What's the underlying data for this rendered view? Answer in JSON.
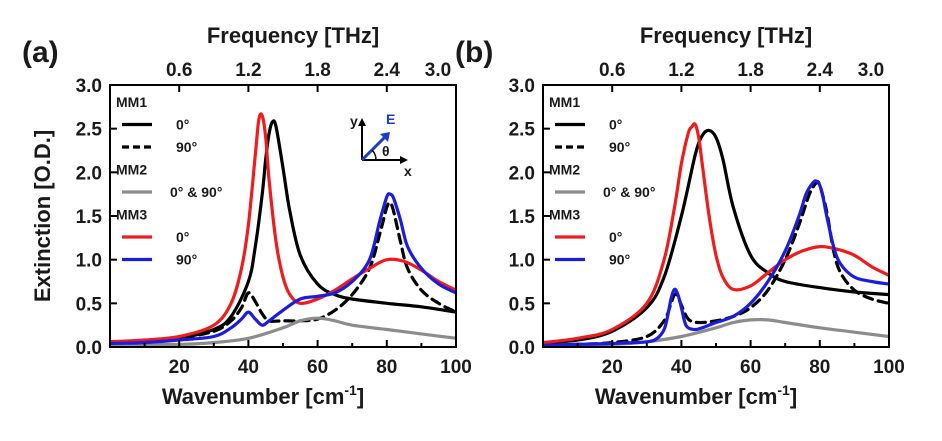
{
  "chart_data": [
    {
      "type": "line",
      "panel_label": "(a)",
      "xlabel_main": "Wavenumber [cm",
      "xlabel_sup": "-1",
      "xlabel_end": "]",
      "ylabel": "Extinction [O.D.]",
      "top_label": "Frequency [THz]",
      "xlim": [
        0,
        100
      ],
      "ylim": [
        0,
        3.0
      ],
      "x_ticks": [
        20,
        40,
        60,
        80,
        100
      ],
      "y_ticks": [
        "0.0",
        "0.5",
        "1.0",
        "1.5",
        "2.0",
        "2.5",
        "3.0"
      ],
      "top_ticks": [
        "0.6",
        "1.2",
        "1.8",
        "2.4",
        "3.0"
      ],
      "legend": {
        "groups": [
          "MM1",
          "MM2",
          "MM3"
        ],
        "entries": [
          {
            "group": 0,
            "label": "0°",
            "color": "#000000",
            "dash": false
          },
          {
            "group": 0,
            "label": "90°",
            "color": "#000000",
            "dash": true
          },
          {
            "group": 1,
            "label": "0° & 90°",
            "color": "#8c8c8c",
            "dash": false
          },
          {
            "group": 2,
            "label": "0°",
            "color": "#ee1c1c",
            "dash": false
          },
          {
            "group": 2,
            "label": "90°",
            "color": "#1c1cdc",
            "dash": false
          }
        ]
      },
      "inset": {
        "y": "y",
        "x": "x",
        "e": "E",
        "theta": "θ"
      },
      "series": [
        {
          "name": "MM1 0°",
          "color": "#000000",
          "dash": false,
          "x": [
            0,
            10,
            20,
            30,
            35,
            40,
            42,
            44,
            45,
            46,
            47,
            48,
            50,
            52,
            55,
            60,
            65,
            70,
            80,
            90,
            100
          ],
          "y": [
            0.06,
            0.06,
            0.1,
            0.2,
            0.35,
            0.75,
            1.15,
            1.75,
            2.15,
            2.45,
            2.58,
            2.52,
            2.05,
            1.55,
            1.05,
            0.72,
            0.6,
            0.55,
            0.5,
            0.46,
            0.4
          ]
        },
        {
          "name": "MM1 90°",
          "color": "#000000",
          "dash": true,
          "x": [
            0,
            10,
            20,
            30,
            35,
            38,
            40,
            42,
            44,
            46,
            50,
            55,
            60,
            65,
            70,
            75,
            78,
            80,
            81,
            82,
            84,
            86,
            90,
            95,
            100
          ],
          "y": [
            0.05,
            0.06,
            0.1,
            0.18,
            0.3,
            0.45,
            0.62,
            0.52,
            0.38,
            0.3,
            0.3,
            0.3,
            0.32,
            0.42,
            0.6,
            0.9,
            1.3,
            1.6,
            1.65,
            1.55,
            1.2,
            0.9,
            0.65,
            0.5,
            0.4
          ]
        },
        {
          "name": "MM2 0° & 90°",
          "color": "#8c8c8c",
          "dash": false,
          "x": [
            0,
            20,
            30,
            40,
            50,
            55,
            60,
            65,
            70,
            80,
            90,
            100
          ],
          "y": [
            0.02,
            0.03,
            0.05,
            0.1,
            0.22,
            0.3,
            0.33,
            0.3,
            0.25,
            0.2,
            0.15,
            0.1
          ]
        },
        {
          "name": "MM3 0°",
          "color": "#ee1c1c",
          "dash": false,
          "x": [
            0,
            10,
            20,
            30,
            35,
            38,
            40,
            42,
            43,
            44,
            45,
            46,
            48,
            50,
            52,
            55,
            60,
            65,
            70,
            75,
            80,
            85,
            90,
            95,
            100
          ],
          "y": [
            0.06,
            0.08,
            0.12,
            0.25,
            0.5,
            0.9,
            1.4,
            2.2,
            2.6,
            2.65,
            2.4,
            1.9,
            1.2,
            0.8,
            0.6,
            0.5,
            0.55,
            0.65,
            0.78,
            0.9,
            1.0,
            0.98,
            0.88,
            0.75,
            0.65
          ]
        },
        {
          "name": "MM3 90°",
          "color": "#1c1cdc",
          "dash": false,
          "x": [
            0,
            10,
            20,
            30,
            35,
            38,
            40,
            42,
            44,
            46,
            50,
            55,
            60,
            65,
            70,
            75,
            78,
            80,
            81,
            82,
            84,
            86,
            90,
            95,
            100
          ],
          "y": [
            0.04,
            0.05,
            0.08,
            0.12,
            0.22,
            0.32,
            0.4,
            0.32,
            0.25,
            0.3,
            0.42,
            0.55,
            0.58,
            0.62,
            0.75,
            1.0,
            1.45,
            1.72,
            1.75,
            1.7,
            1.45,
            1.15,
            0.9,
            0.72,
            0.62
          ]
        }
      ]
    },
    {
      "type": "line",
      "panel_label": "(b)",
      "xlabel_main": "Wavenumber [cm",
      "xlabel_sup": "-1",
      "xlabel_end": "]",
      "ylabel": "",
      "top_label": "Frequency [THz]",
      "xlim": [
        0,
        100
      ],
      "ylim": [
        0,
        3.0
      ],
      "x_ticks": [
        20,
        40,
        60,
        80,
        100
      ],
      "y_ticks": [
        "0.0",
        "0.5",
        "1.0",
        "1.5",
        "2.0",
        "2.5",
        "3.0"
      ],
      "top_ticks": [
        "0.6",
        "1.2",
        "1.8",
        "2.4",
        "3.0"
      ],
      "legend": {
        "groups": [
          "MM1",
          "MM2",
          "MM3"
        ],
        "entries": [
          {
            "group": 0,
            "label": "0°",
            "color": "#000000",
            "dash": false
          },
          {
            "group": 0,
            "label": "90°",
            "color": "#000000",
            "dash": true
          },
          {
            "group": 1,
            "label": "0° & 90°",
            "color": "#8c8c8c",
            "dash": false
          },
          {
            "group": 2,
            "label": "0°",
            "color": "#ee1c1c",
            "dash": false
          },
          {
            "group": 2,
            "label": "90°",
            "color": "#1c1cdc",
            "dash": false
          }
        ]
      },
      "series": [
        {
          "name": "MM1 0°",
          "color": "#000000",
          "dash": false,
          "x": [
            0,
            10,
            20,
            30,
            35,
            40,
            44,
            46,
            48,
            50,
            52,
            55,
            60,
            65,
            70,
            80,
            90,
            100
          ],
          "y": [
            0.05,
            0.08,
            0.18,
            0.45,
            0.8,
            1.5,
            2.2,
            2.42,
            2.48,
            2.4,
            2.15,
            1.6,
            1.05,
            0.85,
            0.75,
            0.68,
            0.63,
            0.6
          ]
        },
        {
          "name": "MM1 90°",
          "color": "#000000",
          "dash": true,
          "x": [
            0,
            10,
            20,
            30,
            35,
            37,
            38,
            39,
            40,
            42,
            45,
            50,
            55,
            60,
            65,
            70,
            74,
            77,
            79,
            80,
            82,
            84,
            86,
            90,
            95,
            100
          ],
          "y": [
            0.02,
            0.03,
            0.05,
            0.12,
            0.3,
            0.5,
            0.6,
            0.58,
            0.48,
            0.32,
            0.28,
            0.3,
            0.35,
            0.45,
            0.65,
            1.0,
            1.4,
            1.75,
            1.88,
            1.85,
            1.55,
            1.1,
            0.85,
            0.65,
            0.55,
            0.5
          ]
        },
        {
          "name": "MM2 0° & 90°",
          "color": "#8c8c8c",
          "dash": false,
          "x": [
            0,
            20,
            30,
            40,
            50,
            55,
            60,
            65,
            70,
            80,
            90,
            100
          ],
          "y": [
            0.02,
            0.03,
            0.06,
            0.12,
            0.22,
            0.28,
            0.31,
            0.31,
            0.28,
            0.22,
            0.17,
            0.12
          ]
        },
        {
          "name": "MM3 0°",
          "color": "#ee1c1c",
          "dash": false,
          "x": [
            0,
            10,
            20,
            30,
            35,
            38,
            40,
            42,
            43,
            44,
            45,
            46,
            48,
            50,
            52,
            55,
            60,
            65,
            70,
            75,
            80,
            85,
            90,
            95,
            100
          ],
          "y": [
            0.05,
            0.1,
            0.2,
            0.5,
            1.0,
            1.6,
            2.1,
            2.45,
            2.52,
            2.55,
            2.4,
            2.1,
            1.5,
            1.05,
            0.8,
            0.66,
            0.7,
            0.85,
            1.0,
            1.1,
            1.15,
            1.12,
            1.05,
            0.92,
            0.82
          ]
        },
        {
          "name": "MM3 90°",
          "color": "#1c1cdc",
          "dash": false,
          "x": [
            0,
            10,
            20,
            30,
            33,
            35,
            36,
            37,
            38,
            39,
            40,
            41,
            42,
            44,
            46,
            50,
            55,
            60,
            65,
            70,
            74,
            76,
            78,
            79,
            80,
            81,
            82,
            84,
            86,
            90,
            95,
            100
          ],
          "y": [
            0.02,
            0.03,
            0.04,
            0.06,
            0.1,
            0.2,
            0.35,
            0.55,
            0.66,
            0.6,
            0.45,
            0.28,
            0.22,
            0.2,
            0.22,
            0.28,
            0.35,
            0.5,
            0.75,
            1.1,
            1.5,
            1.75,
            1.88,
            1.9,
            1.85,
            1.7,
            1.5,
            1.15,
            0.95,
            0.8,
            0.75,
            0.72
          ]
        }
      ]
    }
  ]
}
